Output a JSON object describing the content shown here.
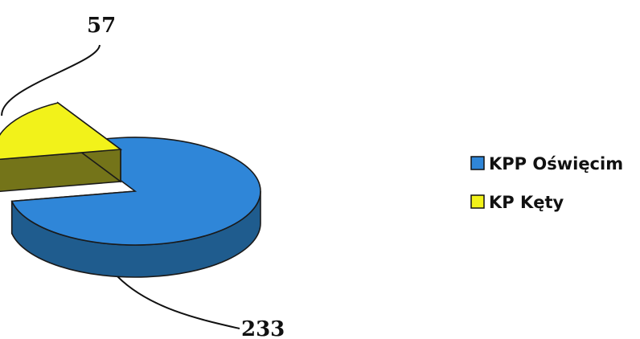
{
  "chart_data": {
    "type": "pie",
    "style": "3d-exploded",
    "categories": [
      "KPP Oświęcim",
      "KP Kęty"
    ],
    "values": [
      233,
      57
    ],
    "colors": [
      "#2f86d8",
      "#f2f21a"
    ],
    "side_colors": [
      "#1f5c8e",
      "#747419"
    ],
    "data_labels": [
      "233",
      "57"
    ],
    "legend": {
      "position": "right",
      "entries": [
        "KPP Oświęcim",
        "KP Kęty"
      ]
    },
    "title": ""
  }
}
